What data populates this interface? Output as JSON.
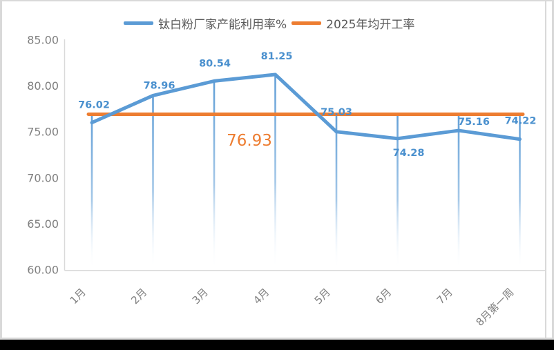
{
  "chart_data": {
    "type": "line",
    "title": "",
    "categories": [
      "1月",
      "2月",
      "3月",
      "4月",
      "5月",
      "6月",
      "7月",
      "8月第一周"
    ],
    "series": [
      {
        "name": "钛白粉厂家产能利用率%",
        "values": [
          76.02,
          78.96,
          80.54,
          81.25,
          75.03,
          74.28,
          75.16,
          74.22
        ],
        "color": "#5b9bd5",
        "label_color": "#4a90ce"
      },
      {
        "name": "2025年均开工率",
        "type": "constant-line",
        "value": 76.93,
        "label": "76.93",
        "color": "#ed7d31"
      }
    ],
    "ylim": [
      60,
      85
    ],
    "yticks": [
      "85.00",
      "80.00",
      "75.00",
      "70.00",
      "65.00",
      "60.00"
    ],
    "ytick_values": [
      85,
      80,
      75,
      70,
      65,
      60
    ],
    "xlabel": "",
    "ylabel": "",
    "grid": false,
    "data_labels": true,
    "drop_lines": true,
    "legend_position": "top",
    "axis_color": "#d9d9d9",
    "tick_label_color": "#7f7f7f",
    "legend_text_color": "#595959"
  }
}
